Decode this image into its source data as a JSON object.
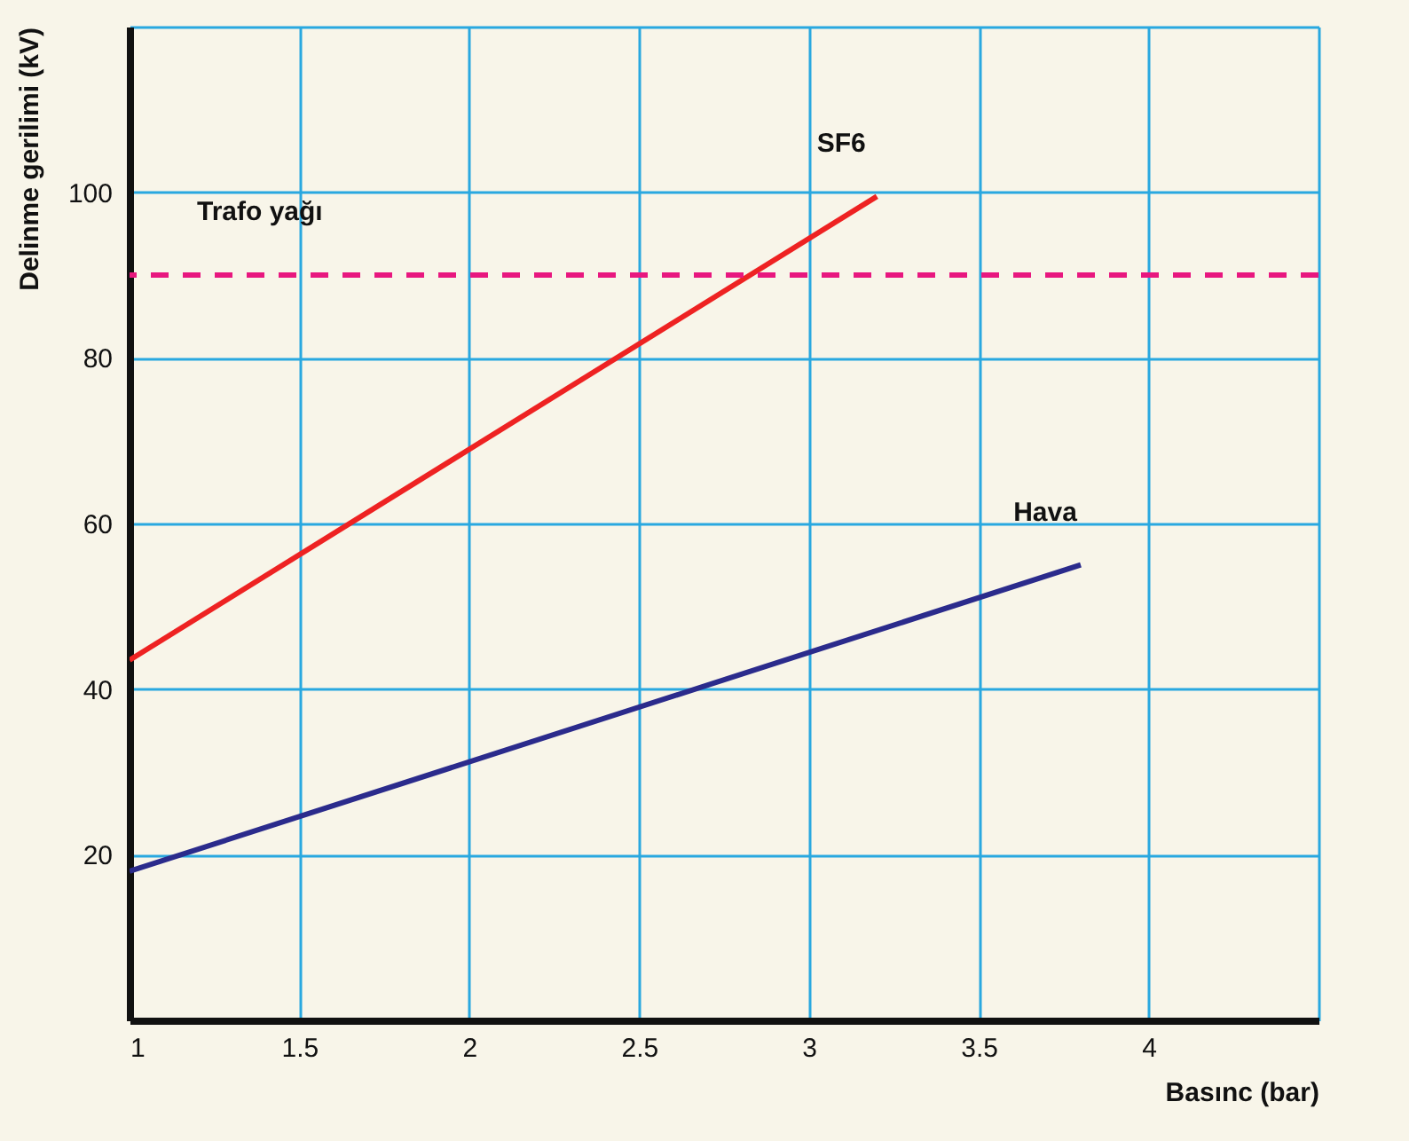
{
  "chart_data": {
    "type": "line",
    "xlabel": "Basınc (bar)",
    "ylabel": "Delinme gerilimi (kV)",
    "xlim": [
      1,
      4.5
    ],
    "ylim": [
      0,
      120
    ],
    "xticks": [
      1,
      1.5,
      2,
      2.5,
      3,
      3.5,
      4,
      {
        "value": 4.5,
        "label": null
      }
    ],
    "yticks": [
      20,
      40,
      60,
      80,
      100,
      {
        "value": 120,
        "label": null
      }
    ],
    "grid": true,
    "line_style": "solid",
    "series": [
      {
        "name": "SF6",
        "color": "#ee2222",
        "x": [
          1,
          3.2
        ],
        "values": [
          43.5,
          99.5
        ]
      },
      {
        "name": "Hava",
        "color": "#2b2b8c",
        "x": [
          1,
          3.8
        ],
        "values": [
          18,
          55
        ]
      }
    ],
    "ref_lines": [
      {
        "axis": "y",
        "value": 90,
        "label": "Trafo yağı",
        "color": "#e8177f",
        "line_style": "dashed"
      }
    ]
  }
}
